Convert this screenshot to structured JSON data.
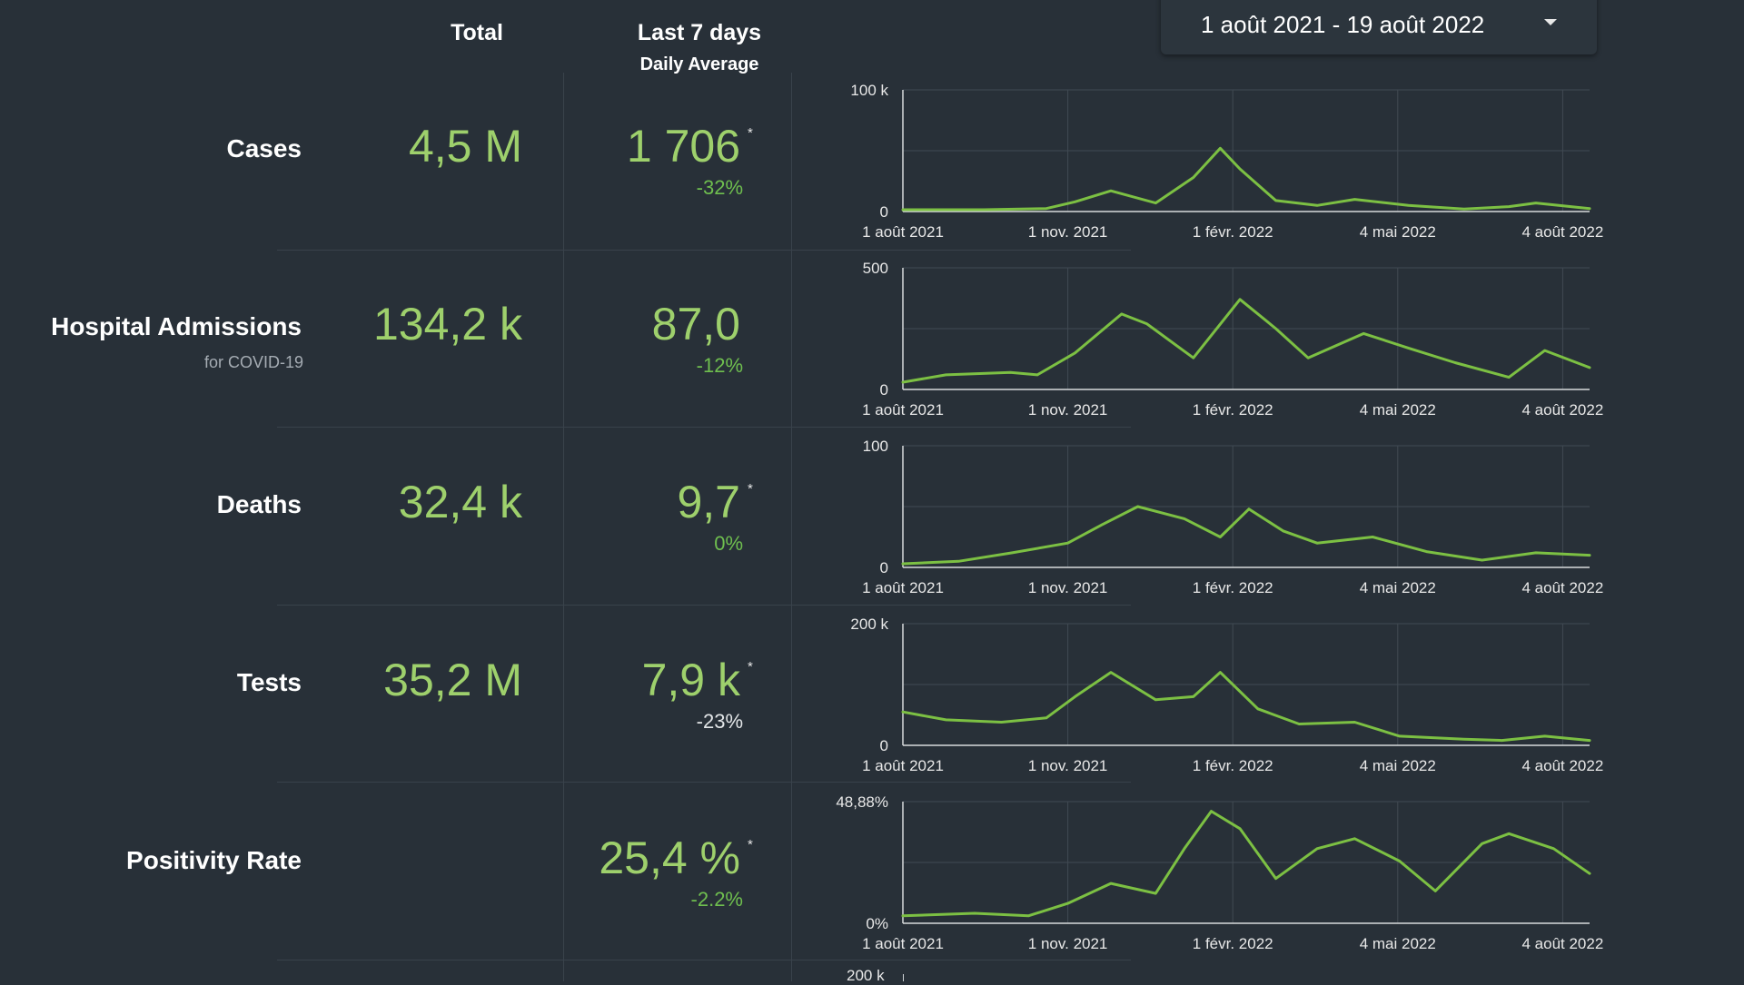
{
  "header": {
    "total": "Total",
    "last7": "Last 7 days",
    "daily_avg": "Daily Average"
  },
  "date_range": "1 août 2021 - 19 août 2022",
  "colors": {
    "background": "#283038",
    "value_green": "#9ed06c",
    "change_green": "#6fbf4f",
    "line": "#7cc043"
  },
  "icons": {
    "dropdown": "caret-down-icon"
  },
  "rows": [
    {
      "label": "Cases",
      "total": "4,5 M",
      "avg": "1 706",
      "asterisk": "*",
      "change": "-32%",
      "change_color": "green"
    },
    {
      "label": "Hospital Admissions",
      "sublabel": "for COVID-19",
      "total": "134,2 k",
      "avg": "87,0",
      "change": "-12%",
      "change_color": "green"
    },
    {
      "label": "Deaths",
      "total": "32,4 k",
      "avg": "9,7",
      "asterisk": "*",
      "change": "0%",
      "change_color": "green"
    },
    {
      "label": "Tests",
      "total": "35,2 M",
      "avg": "7,9 k",
      "asterisk": "*",
      "change": "-23%",
      "change_color": "white"
    },
    {
      "label": "Positivity Rate",
      "avg": "25,4 %",
      "asterisk": "*",
      "change": "-2.2%",
      "change_color": "green"
    }
  ],
  "chart_data": [
    {
      "type": "line",
      "name": "cases-chart",
      "x_ticks": [
        "1 août 2021",
        "1 nov. 2021",
        "1 févr. 2022",
        "4 mai 2022",
        "4 août 2022"
      ],
      "y_ticks": [
        "100 k",
        "0"
      ],
      "ylim": [
        0,
        100000
      ],
      "grid": true,
      "series": [
        {
          "dates": [
            "2021-08-01",
            "2021-09-15",
            "2021-10-20",
            "2021-11-05",
            "2021-11-25",
            "2021-12-20",
            "2022-01-10",
            "2022-01-25",
            "2022-02-05",
            "2022-02-25",
            "2022-03-20",
            "2022-04-10",
            "2022-05-10",
            "2022-06-10",
            "2022-07-05",
            "2022-07-20",
            "2022-08-19"
          ],
          "values": [
            1500,
            1500,
            2500,
            8000,
            17000,
            7000,
            28000,
            52000,
            35000,
            9000,
            5000,
            10000,
            5000,
            2000,
            4000,
            7000,
            2500
          ]
        }
      ]
    },
    {
      "type": "line",
      "name": "hospital-chart",
      "x_ticks": [
        "1 août 2021",
        "1 nov. 2021",
        "1 févr. 2022",
        "4 mai 2022",
        "4 août 2022"
      ],
      "y_ticks": [
        "500",
        "0"
      ],
      "ylim": [
        0,
        500
      ],
      "grid": true,
      "series": [
        {
          "dates": [
            "2021-08-01",
            "2021-08-25",
            "2021-09-30",
            "2021-10-15",
            "2021-11-05",
            "2021-12-01",
            "2021-12-15",
            "2022-01-10",
            "2022-02-05",
            "2022-02-25",
            "2022-03-15",
            "2022-04-15",
            "2022-05-10",
            "2022-06-05",
            "2022-07-05",
            "2022-07-25",
            "2022-08-19"
          ],
          "values": [
            30,
            60,
            70,
            60,
            150,
            310,
            270,
            130,
            370,
            250,
            130,
            230,
            170,
            110,
            50,
            160,
            90
          ]
        }
      ]
    },
    {
      "type": "line",
      "name": "deaths-chart",
      "x_ticks": [
        "1 août 2021",
        "1 nov. 2021",
        "1 févr. 2022",
        "4 mai 2022",
        "4 août 2022"
      ],
      "y_ticks": [
        "100",
        "0"
      ],
      "ylim": [
        0,
        100
      ],
      "grid": true,
      "series": [
        {
          "dates": [
            "2021-08-01",
            "2021-09-01",
            "2021-10-01",
            "2021-11-01",
            "2021-11-20",
            "2021-12-10",
            "2022-01-05",
            "2022-01-25",
            "2022-02-10",
            "2022-03-01",
            "2022-03-20",
            "2022-04-20",
            "2022-05-20",
            "2022-06-20",
            "2022-07-20",
            "2022-08-19"
          ],
          "values": [
            3,
            5,
            12,
            20,
            35,
            50,
            40,
            25,
            48,
            30,
            20,
            25,
            13,
            6,
            12,
            10
          ]
        }
      ]
    },
    {
      "type": "line",
      "name": "tests-chart",
      "x_ticks": [
        "1 août 2021",
        "1 nov. 2021",
        "1 févr. 2022",
        "4 mai 2022",
        "4 août 2022"
      ],
      "y_ticks": [
        "200 k",
        "0"
      ],
      "ylim": [
        0,
        200000
      ],
      "grid": true,
      "series": [
        {
          "dates": [
            "2021-08-01",
            "2021-08-25",
            "2021-09-25",
            "2021-10-20",
            "2021-11-05",
            "2021-11-25",
            "2021-12-20",
            "2022-01-10",
            "2022-01-25",
            "2022-02-15",
            "2022-03-10",
            "2022-04-10",
            "2022-05-05",
            "2022-06-10",
            "2022-07-01",
            "2022-07-25",
            "2022-08-19"
          ],
          "values": [
            55000,
            42000,
            38000,
            45000,
            80000,
            120000,
            75000,
            80000,
            120000,
            60000,
            35000,
            38000,
            15000,
            10000,
            8000,
            15000,
            8000
          ]
        }
      ]
    },
    {
      "type": "line",
      "name": "positivity-chart",
      "x_ticks": [
        "1 août 2021",
        "1 nov. 2021",
        "1 févr. 2022",
        "4 mai 2022",
        "4 août 2022"
      ],
      "y_ticks": [
        "48,88%",
        "0%"
      ],
      "ylim": [
        0,
        48.88
      ],
      "grid": true,
      "series": [
        {
          "dates": [
            "2021-08-01",
            "2021-09-10",
            "2021-10-10",
            "2021-11-01",
            "2021-11-25",
            "2021-12-20",
            "2022-01-05",
            "2022-01-20",
            "2022-02-05",
            "2022-02-25",
            "2022-03-20",
            "2022-04-10",
            "2022-05-05",
            "2022-05-25",
            "2022-06-20",
            "2022-07-05",
            "2022-07-30",
            "2022-08-19"
          ],
          "values": [
            3,
            4,
            3,
            8,
            16,
            12,
            30,
            45,
            38,
            18,
            30,
            34,
            25,
            13,
            32,
            36,
            30,
            20
          ]
        }
      ]
    }
  ]
}
